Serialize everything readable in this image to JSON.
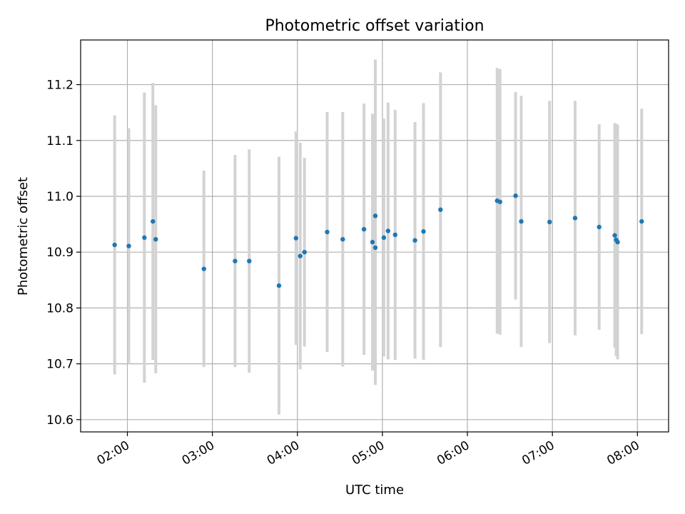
{
  "chart_data": {
    "type": "scatter",
    "title": "Photometric offset variation",
    "xlabel": "UTC time",
    "ylabel": "Photometric offset",
    "x_tick_labels": [
      "02:00",
      "03:00",
      "04:00",
      "05:00",
      "06:00",
      "07:00",
      "08:00"
    ],
    "y_tick_labels": [
      "10.6",
      "10.7",
      "10.8",
      "10.9",
      "11.0",
      "11.1",
      "11.2"
    ],
    "xlim": [
      "01:27",
      "08:22"
    ],
    "ylim": [
      10.578,
      11.28
    ],
    "grid": true,
    "colors": {
      "points": "#1f77b4",
      "errorbars": "#d3d3d3",
      "grid": "#b0b0b0"
    },
    "series": [
      {
        "points": [
          {
            "x": "01:51",
            "y": 10.913,
            "low": 10.681,
            "high": 11.145
          },
          {
            "x": "02:01",
            "y": 10.911,
            "low": 10.7,
            "high": 11.122
          },
          {
            "x": "02:12",
            "y": 10.926,
            "low": 10.666,
            "high": 11.186
          },
          {
            "x": "02:18",
            "y": 10.955,
            "low": 10.707,
            "high": 11.203
          },
          {
            "x": "02:18",
            "y": 10.923,
            "low": 10.683,
            "high": 11.163
          },
          {
            "x": "02:54",
            "y": 10.87,
            "low": 10.694,
            "high": 11.046
          },
          {
            "x": "03:16",
            "y": 10.884,
            "low": 10.694,
            "high": 11.074
          },
          {
            "x": "03:26",
            "y": 10.884,
            "low": 10.684,
            "high": 11.084
          },
          {
            "x": "03:47",
            "y": 10.84,
            "low": 10.609,
            "high": 11.071
          },
          {
            "x": "03:59",
            "y": 10.925,
            "low": 10.734,
            "high": 11.116
          },
          {
            "x": "04:02",
            "y": 10.893,
            "low": 10.69,
            "high": 11.096
          },
          {
            "x": "04:05",
            "y": 10.9,
            "low": 10.731,
            "high": 11.069
          },
          {
            "x": "04:21",
            "y": 10.936,
            "low": 10.721,
            "high": 11.151
          },
          {
            "x": "04:32",
            "y": 10.923,
            "low": 10.695,
            "high": 11.151
          },
          {
            "x": "04:47",
            "y": 10.941,
            "low": 10.716,
            "high": 11.166
          },
          {
            "x": "04:53",
            "y": 10.918,
            "low": 10.688,
            "high": 11.148
          },
          {
            "x": "04:53",
            "y": 10.908,
            "low": 10.662,
            "high": 11.154
          },
          {
            "x": "04:55",
            "y": 10.965,
            "low": 10.685,
            "high": 11.245
          },
          {
            "x": "05:01",
            "y": 10.926,
            "low": 10.713,
            "high": 11.139
          },
          {
            "x": "05:04",
            "y": 10.938,
            "low": 10.708,
            "high": 11.168
          },
          {
            "x": "05:09",
            "y": 10.931,
            "low": 10.707,
            "high": 11.155
          },
          {
            "x": "05:23",
            "y": 10.921,
            "low": 10.709,
            "high": 11.133
          },
          {
            "x": "05:29",
            "y": 10.937,
            "low": 10.707,
            "high": 11.167
          },
          {
            "x": "05:41",
            "y": 10.976,
            "low": 10.73,
            "high": 11.222
          },
          {
            "x": "06:21",
            "y": 10.992,
            "low": 10.754,
            "high": 11.23
          },
          {
            "x": "06:21",
            "y": 10.99,
            "low": 10.752,
            "high": 11.228
          },
          {
            "x": "06:34",
            "y": 11.001,
            "low": 10.815,
            "high": 11.187
          },
          {
            "x": "06:38",
            "y": 10.955,
            "low": 10.73,
            "high": 11.18
          },
          {
            "x": "06:58",
            "y": 10.954,
            "low": 10.737,
            "high": 11.171
          },
          {
            "x": "07:16",
            "y": 10.961,
            "low": 10.751,
            "high": 11.171
          },
          {
            "x": "07:33",
            "y": 10.945,
            "low": 10.761,
            "high": 11.129
          },
          {
            "x": "07:44",
            "y": 10.93,
            "low": 10.729,
            "high": 11.131
          },
          {
            "x": "07:44",
            "y": 10.918,
            "low": 10.708,
            "high": 11.128
          },
          {
            "x": "07:45",
            "y": 10.922,
            "low": 10.714,
            "high": 11.13
          },
          {
            "x": "08:03",
            "y": 10.955,
            "low": 10.753,
            "high": 11.157
          }
        ]
      }
    ]
  }
}
